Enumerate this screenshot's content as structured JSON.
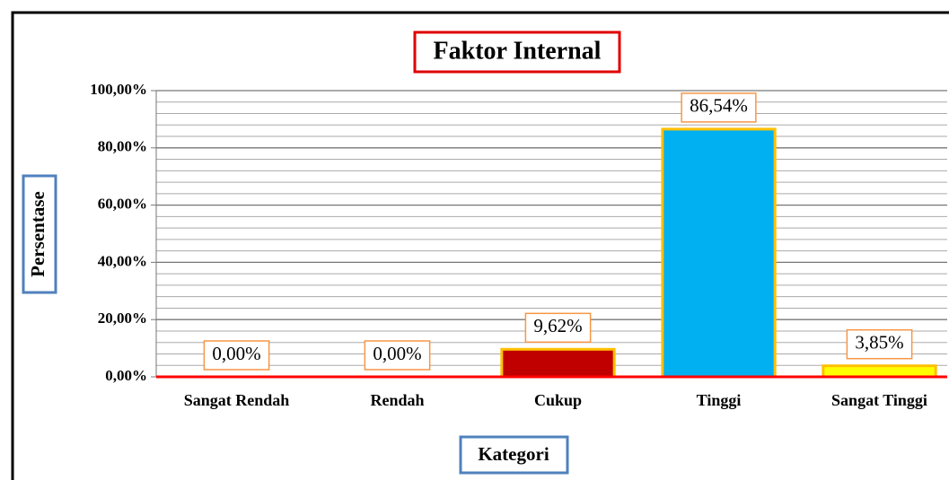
{
  "chart_data": {
    "type": "bar",
    "title": "Faktor Internal",
    "x_label": "Kategori",
    "y_label": "Persentase",
    "categories": [
      "Sangat Rendah",
      "Rendah",
      "Cukup",
      "Tinggi",
      "Sangat Tinggi"
    ],
    "values": [
      0,
      0,
      9.62,
      86.54,
      3.85
    ],
    "value_labels": [
      "0,00%",
      "0,00%",
      "9,62%",
      "86,54%",
      "3,85%"
    ],
    "colors": [
      "#c00000",
      "#c00000",
      "#c00000",
      "#00b0f0",
      "#ffff00"
    ],
    "edge_color": "#ffc000",
    "ylim": [
      0,
      100
    ],
    "yticks": [
      {
        "value": 0,
        "label": "0,00%"
      },
      {
        "value": 20,
        "label": "20,00%"
      },
      {
        "value": 40,
        "label": "40,00%"
      },
      {
        "value": 60,
        "label": "60,00%"
      },
      {
        "value": 80,
        "label": "80,00%"
      },
      {
        "value": 100,
        "label": "100,00%"
      }
    ],
    "minor_yticks": [
      4,
      8,
      12,
      16,
      24,
      28,
      32,
      36,
      44,
      48,
      52,
      56,
      64,
      68,
      72,
      76,
      84,
      88,
      92,
      96
    ],
    "grid": true
  }
}
